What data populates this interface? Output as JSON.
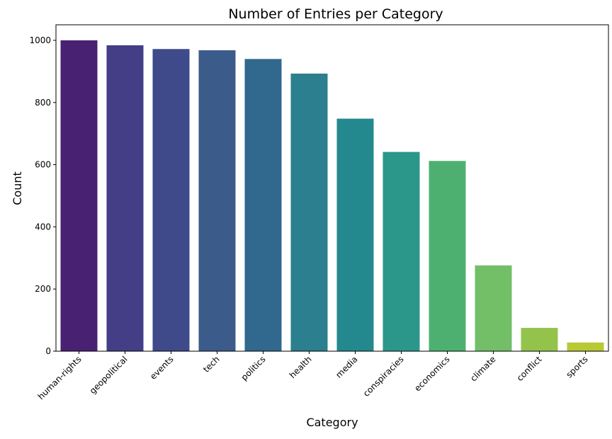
{
  "chart_data": {
    "type": "bar",
    "title": "Number of Entries per Category",
    "xlabel": "Category",
    "ylabel": "Count",
    "categories": [
      "human-rights",
      "geopolitical",
      "events",
      "tech",
      "politics",
      "health",
      "media",
      "conspiracies",
      "economics",
      "climate",
      "conflict",
      "sports"
    ],
    "values": [
      1000,
      984,
      972,
      968,
      940,
      893,
      748,
      641,
      612,
      276,
      75,
      28
    ],
    "colors": [
      "#482173",
      "#433e85",
      "#3e4a89",
      "#3b5b8b",
      "#31688e",
      "#2c7f8e",
      "#23898e",
      "#2a978a",
      "#4eb070",
      "#72bf68",
      "#94c34c",
      "#b8c935"
    ],
    "ylim": [
      0,
      1050
    ],
    "yticks": [
      0,
      200,
      400,
      600,
      800,
      1000
    ],
    "grid": false,
    "legend": "none"
  }
}
